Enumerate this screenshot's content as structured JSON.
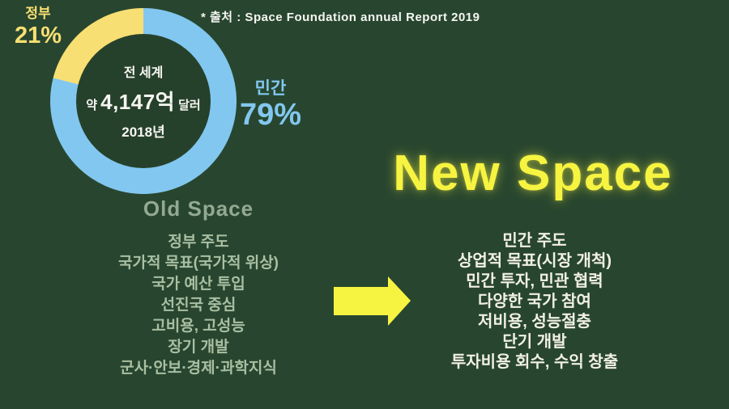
{
  "source_note": "* 출처 : Space Foundation annual Report 2019",
  "chart": {
    "center": {
      "line1": "전 세계",
      "amount_prefix": "약",
      "amount": "4,147억",
      "amount_suffix": "달러",
      "year": "2018년"
    },
    "segments": [
      {
        "label": "민간",
        "pct_label": "79%",
        "value": 79,
        "color": "#82C7EF"
      },
      {
        "label": "정부",
        "pct_label": "21%",
        "value": 21,
        "color": "#F8DF73"
      }
    ]
  },
  "chart_data": {
    "type": "pie",
    "subtype": "donut",
    "title": "전 세계 약 4,147억 달러 (2018년)",
    "labels": [
      "민간",
      "정부"
    ],
    "values": [
      79,
      21
    ],
    "unit": "%",
    "colors": [
      "#82C7EF",
      "#F8DF73"
    ],
    "start_angle_deg": 0,
    "legend_position": "outside",
    "source": "* 출처 : Space Foundation annual Report 2019"
  },
  "old_space": {
    "title": "Old Space",
    "items": [
      "정부 주도",
      "국가적 목표(국가적 위상)",
      "국가 예산 투입",
      "선진국 중심",
      "고비용, 고성능",
      "장기 개발",
      "군사·안보·경제·과학지식"
    ]
  },
  "new_space": {
    "title": "New Space",
    "items": [
      "민간 주도",
      "상업적 목표(시장 개척)",
      "민간 투자, 민관 협력",
      "다양한 국가 참여",
      "저비용, 성능절충",
      "단기 개발",
      "투자비용 회수, 수익 창출"
    ]
  },
  "arrow": {
    "direction": "right",
    "color": "#F7F441"
  },
  "colors": {
    "background": "#28462F",
    "donut_hole": "#26412B",
    "private_blue": "#82C7EF",
    "government_yellow": "#F8DF73",
    "highlight_yellow": "#F7F441",
    "old_space_title": "#93A992",
    "old_space_text": "#A9BFA3",
    "new_space_text": "#F2F0E6",
    "white_text": "#F6F6F2"
  }
}
